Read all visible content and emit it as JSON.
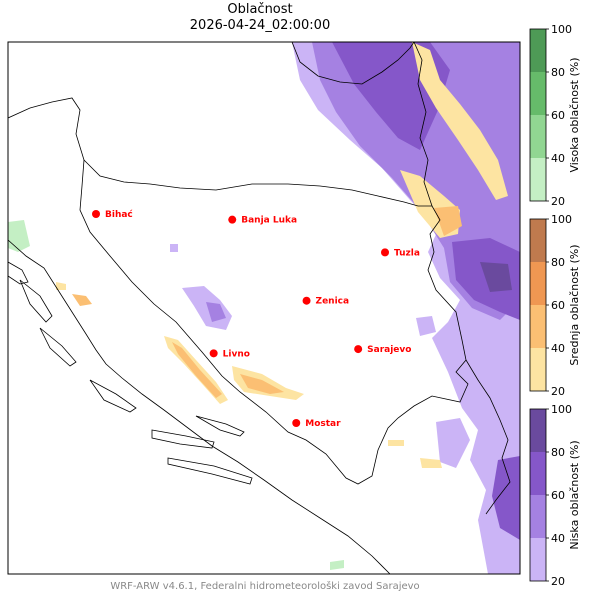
{
  "title": "Oblačnost",
  "subtitle": "2026-04-24_02:00:00",
  "footer": "WRF-ARW v4.6.1, Federalni hidrometeorološki zavod Sarajevo",
  "cities": [
    {
      "name": "Bihać",
      "lon": 15.87,
      "lat": 44.81
    },
    {
      "name": "Banja Luka",
      "lon": 17.19,
      "lat": 44.77
    },
    {
      "name": "Tuzla",
      "lon": 18.67,
      "lat": 44.54
    },
    {
      "name": "Zenica",
      "lon": 17.91,
      "lat": 44.2
    },
    {
      "name": "Sarajevo",
      "lon": 18.41,
      "lat": 43.86
    },
    {
      "name": "Livno",
      "lon": 17.01,
      "lat": 43.83
    },
    {
      "name": "Mostar",
      "lon": 17.81,
      "lat": 43.34
    }
  ],
  "colorbars": [
    {
      "label": "Visoka oblačnost (%)",
      "ticks": [
        "100",
        "80",
        "60",
        "40",
        "20"
      ],
      "colors": [
        "#4e9a56",
        "#66bb6a",
        "#91d692",
        "#c4efc4"
      ]
    },
    {
      "label": "Srednja oblačnost (%)",
      "ticks": [
        "100",
        "80",
        "60",
        "40",
        "20"
      ],
      "colors": [
        "#bf7a4e",
        "#ef9752",
        "#fbbf73",
        "#fde4a2"
      ]
    },
    {
      "label": "Niska oblačnost (%)",
      "ticks": [
        "100",
        "80",
        "60",
        "40",
        "20"
      ],
      "colors": [
        "#6a4a9e",
        "#8557c9",
        "#a581e2",
        "#cbb4f6"
      ]
    }
  ]
}
